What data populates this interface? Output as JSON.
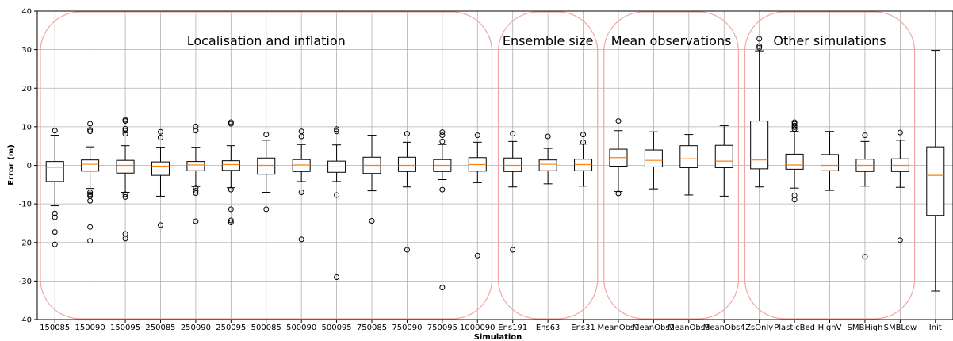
{
  "chart_data": {
    "type": "box",
    "xlabel": "Simulation",
    "ylabel": "Error (m)",
    "ylim": [
      -40,
      40
    ],
    "yticks": [
      -40,
      -30,
      -20,
      -10,
      0,
      10,
      20,
      30,
      40
    ],
    "grid": true,
    "categories": [
      "150085",
      "150090",
      "150095",
      "250085",
      "250090",
      "250095",
      "500085",
      "500090",
      "500095",
      "750085",
      "750090",
      "750095",
      "1000090",
      "Ens191",
      "Ens63",
      "Ens31",
      "MeanObs1",
      "MeanObs2",
      "MeanObs3",
      "MeanObs4",
      "ZsOnly",
      "PlasticBed",
      "HighV",
      "SMBHigh",
      "SMBLow",
      "Init"
    ],
    "boxes": [
      {
        "q1": -4.2,
        "median": -0.5,
        "q3": 1.0,
        "whisker_low": -10.5,
        "whisker_high": 7.8,
        "outliers": [
          9.0,
          -12.5,
          -13.5,
          -17.3,
          -20.5
        ]
      },
      {
        "q1": -1.5,
        "median": 0.3,
        "q3": 1.4,
        "whisker_low": -6.0,
        "whisker_high": 4.8,
        "outliers": [
          10.8,
          9.2,
          8.8,
          -7.0,
          -7.5,
          -8.0,
          -9.2,
          -16.0,
          -19.6
        ]
      },
      {
        "q1": -2.0,
        "median": 0.0,
        "q3": 1.3,
        "whisker_low": -7.0,
        "whisker_high": 5.1,
        "outliers": [
          11.8,
          11.5,
          9.5,
          9.0,
          8.2,
          -7.5,
          -8.2,
          -17.8,
          -19.0
        ]
      },
      {
        "q1": -2.6,
        "median": -0.2,
        "q3": 0.9,
        "whisker_low": -8.0,
        "whisker_high": 4.7,
        "outliers": [
          8.7,
          7.2,
          -15.5
        ]
      },
      {
        "q1": -1.4,
        "median": 0.1,
        "q3": 1.0,
        "whisker_low": -5.5,
        "whisker_high": 4.7,
        "outliers": [
          10.1,
          9.0,
          -5.8,
          -6.6,
          -7.2,
          -14.5
        ]
      },
      {
        "q1": -1.3,
        "median": 0.2,
        "q3": 1.2,
        "whisker_low": -5.8,
        "whisker_high": 5.1,
        "outliers": [
          11.2,
          10.8,
          -6.3,
          -11.4,
          -14.3,
          -14.8
        ]
      },
      {
        "q1": -2.3,
        "median": 0.0,
        "q3": 1.9,
        "whisker_low": -7.0,
        "whisker_high": 6.5,
        "outliers": [
          8.0,
          -11.4
        ]
      },
      {
        "q1": -1.6,
        "median": 0.1,
        "q3": 1.5,
        "whisker_low": -4.2,
        "whisker_high": 5.4,
        "outliers": [
          8.8,
          7.5,
          -7.0,
          -19.2
        ]
      },
      {
        "q1": -1.8,
        "median": -0.4,
        "q3": 1.1,
        "whisker_low": -4.2,
        "whisker_high": 5.3,
        "outliers": [
          9.4,
          8.8,
          -7.7,
          -29.0
        ]
      },
      {
        "q1": -2.1,
        "median": 0.0,
        "q3": 2.1,
        "whisker_low": -6.6,
        "whisker_high": 7.8,
        "outliers": [
          -14.4
        ]
      },
      {
        "q1": -1.6,
        "median": 0.0,
        "q3": 2.1,
        "whisker_low": -5.6,
        "whisker_high": 6.0,
        "outliers": [
          8.2,
          -21.9
        ]
      },
      {
        "q1": -1.6,
        "median": 0.0,
        "q3": 1.5,
        "whisker_low": -3.7,
        "whisker_high": 5.4,
        "outliers": [
          8.6,
          7.8,
          6.2,
          -6.3,
          -31.7
        ]
      },
      {
        "q1": -1.5,
        "median": 0.2,
        "q3": 2.0,
        "whisker_low": -4.5,
        "whisker_high": 6.0,
        "outliers": [
          7.8,
          -23.4
        ]
      },
      {
        "q1": -1.6,
        "median": 0.0,
        "q3": 1.9,
        "whisker_low": -5.6,
        "whisker_high": 6.2,
        "outliers": [
          8.2,
          -21.9
        ]
      },
      {
        "q1": -1.4,
        "median": 0.3,
        "q3": 1.4,
        "whisker_low": -4.8,
        "whisker_high": 4.4,
        "outliers": [
          7.5
        ]
      },
      {
        "q1": -1.4,
        "median": 0.2,
        "q3": 1.6,
        "whisker_low": -5.4,
        "whisker_high": 5.5,
        "outliers": [
          8.0,
          6.0
        ]
      },
      {
        "q1": -0.2,
        "median": 2.0,
        "q3": 4.2,
        "whisker_low": -6.8,
        "whisker_high": 9.0,
        "outliers": [
          11.5,
          -7.3
        ]
      },
      {
        "q1": -0.4,
        "median": 1.3,
        "q3": 4.0,
        "whisker_low": -6.1,
        "whisker_high": 8.7,
        "outliers": []
      },
      {
        "q1": -0.6,
        "median": 1.7,
        "q3": 5.1,
        "whisker_low": -7.7,
        "whisker_high": 8.0,
        "outliers": []
      },
      {
        "q1": -0.6,
        "median": 1.1,
        "q3": 5.2,
        "whisker_low": -8.0,
        "whisker_high": 10.3,
        "outliers": []
      },
      {
        "q1": -0.9,
        "median": 1.4,
        "q3": 11.5,
        "whisker_low": -5.6,
        "whisker_high": 29.7,
        "outliers": [
          32.8,
          30.9,
          30.5
        ]
      },
      {
        "q1": -1.0,
        "median": 0.1,
        "q3": 2.9,
        "whisker_low": -5.9,
        "whisker_high": 8.8,
        "outliers": [
          11.2,
          10.8,
          10.3,
          9.9,
          9.4,
          -7.8,
          -8.9
        ]
      },
      {
        "q1": -1.4,
        "median": 0.0,
        "q3": 2.8,
        "whisker_low": -6.5,
        "whisker_high": 8.8,
        "outliers": []
      },
      {
        "q1": -1.6,
        "median": 0.0,
        "q3": 1.6,
        "whisker_low": -5.4,
        "whisker_high": 6.2,
        "outliers": [
          7.8,
          -23.7
        ]
      },
      {
        "q1": -1.6,
        "median": 0.0,
        "q3": 1.7,
        "whisker_low": -5.7,
        "whisker_high": 6.5,
        "outliers": [
          8.5,
          -19.4
        ]
      },
      {
        "q1": -13.0,
        "median": -2.6,
        "q3": 4.8,
        "whisker_low": -32.6,
        "whisker_high": 29.8,
        "outliers": []
      }
    ],
    "groups": [
      {
        "label": "Localisation and inflation",
        "from": 0,
        "to": 12
      },
      {
        "label": "Ensemble size",
        "from": 13,
        "to": 15
      },
      {
        "label": "Mean observations",
        "from": 16,
        "to": 19
      },
      {
        "label": "Other simulations",
        "from": 20,
        "to": 24
      }
    ],
    "colors": {
      "box": "#000000",
      "median": "#ff7f0e",
      "grid": "#b0b0b0",
      "group_frame": "#f4a6a6"
    }
  }
}
